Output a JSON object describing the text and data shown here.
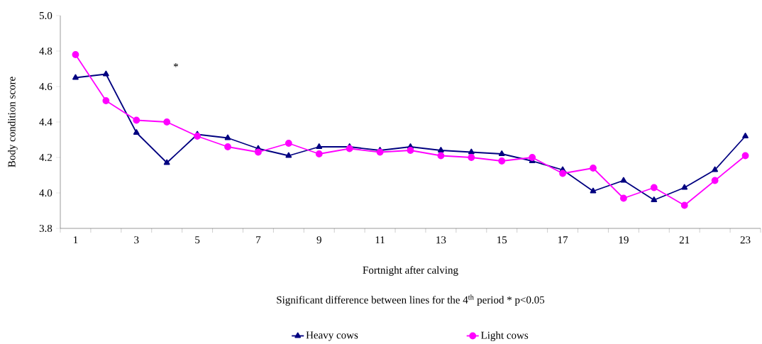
{
  "chart_data": {
    "type": "line",
    "xlabel": "Fortnight after calving",
    "ylabel": "Body condition score",
    "categories": [
      "1",
      null,
      "3",
      null,
      "5",
      null,
      "7",
      null,
      "9",
      null,
      "11",
      null,
      "13",
      null,
      "15",
      null,
      "17",
      null,
      "19",
      null,
      "21",
      null,
      "23"
    ],
    "series": [
      {
        "name": "Heavy cows",
        "color": "#000080",
        "marker": "triangle",
        "values": [
          4.65,
          4.67,
          4.34,
          4.17,
          4.33,
          4.31,
          4.25,
          4.21,
          4.26,
          4.26,
          4.24,
          4.26,
          4.24,
          4.23,
          4.22,
          4.18,
          4.13,
          4.01,
          4.07,
          3.96,
          4.03,
          4.13,
          4.32
        ]
      },
      {
        "name": "Light cows",
        "color": "#ff00ff",
        "marker": "circle",
        "values": [
          4.78,
          4.52,
          4.41,
          4.4,
          4.32,
          4.26,
          4.23,
          4.28,
          4.22,
          4.25,
          4.23,
          4.24,
          4.21,
          4.2,
          4.18,
          4.2,
          4.11,
          4.14,
          3.97,
          4.03,
          3.93,
          4.07,
          4.21
        ]
      }
    ],
    "ylim": [
      3.8,
      5.0
    ],
    "yticks": [
      3.8,
      {
        "value": 4,
        "label": "4.0"
      },
      4.2,
      4.4,
      4.6,
      4.8,
      {
        "value": 5,
        "label": "5.0"
      }
    ],
    "annotations": [
      "*",
      "Significant difference between lines for the 4$^{th}$ period * p<0.05"
    ],
    "grid": false,
    "legend": "bottom",
    "line_style": "solid"
  }
}
